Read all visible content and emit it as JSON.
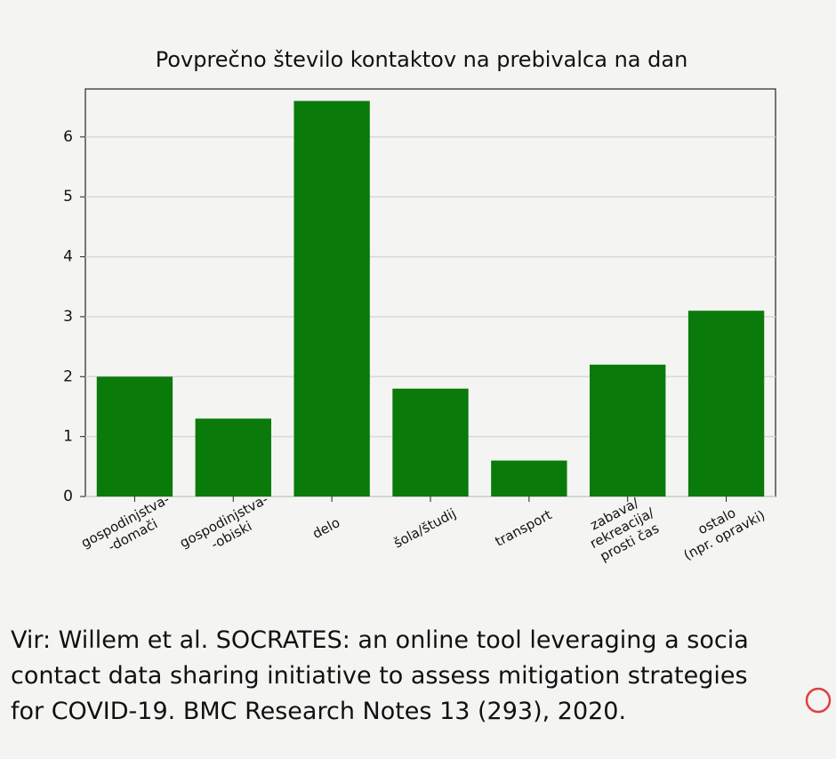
{
  "chart_data": {
    "type": "bar",
    "title": "Povprečno število kontaktov na prebivalca na dan",
    "categories": [
      "gospodinjstva-\n-domači",
      "gospodinjstva-\n-obiski",
      "delo",
      "šola/študij",
      "transport",
      "zabava/\nrekreacija/\nprosti čas",
      "ostalo\n(npr. opravki)"
    ],
    "values": [
      2.0,
      1.3,
      6.6,
      1.8,
      0.6,
      2.2,
      3.1
    ],
    "color": "#0a7a0a",
    "ylim": [
      0,
      6.8
    ],
    "yticks": [
      0,
      1,
      2,
      3,
      4,
      5,
      6
    ],
    "grid": true
  },
  "caption_lines": [
    "Vir: Willem et al. SOCRATES: an online tool leveraging a socia",
    "contact data sharing initiative to assess mitigation strategies",
    "for COVID-19. BMC Research Notes 13 (293), 2020."
  ]
}
